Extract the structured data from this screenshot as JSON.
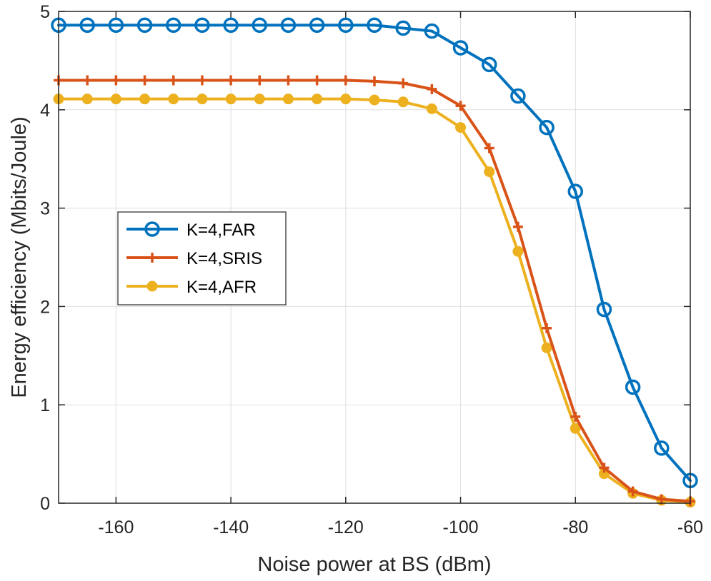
{
  "chart_data": {
    "type": "line",
    "title": "",
    "xlabel": "Noise power at BS (dBm)",
    "ylabel": "Energy efficiency (Mbits/Joule)",
    "xlim": [
      -170,
      -60
    ],
    "ylim": [
      0,
      5
    ],
    "xticks": [
      -160,
      -140,
      -120,
      -100,
      -80,
      -60
    ],
    "yticks": [
      0,
      1,
      2,
      3,
      4,
      5
    ],
    "grid": true,
    "legend_position": "center-left",
    "x": [
      -170,
      -165,
      -160,
      -155,
      -150,
      -145,
      -140,
      -135,
      -130,
      -125,
      -120,
      -115,
      -110,
      -105,
      -100,
      -95,
      -90,
      -85,
      -80,
      -75,
      -70,
      -65,
      -60
    ],
    "series": [
      {
        "name": "K=4,FAR",
        "color": "#0072BD",
        "marker": "circle-open",
        "values": [
          4.86,
          4.86,
          4.86,
          4.86,
          4.86,
          4.86,
          4.86,
          4.86,
          4.86,
          4.86,
          4.86,
          4.86,
          4.83,
          4.8,
          4.63,
          4.46,
          4.14,
          3.82,
          3.17,
          1.97,
          1.18,
          0.56,
          0.23
        ]
      },
      {
        "name": "K=4,SRIS",
        "color": "#D95319",
        "marker": "plus",
        "values": [
          4.3,
          4.3,
          4.3,
          4.3,
          4.3,
          4.3,
          4.3,
          4.3,
          4.3,
          4.3,
          4.3,
          4.29,
          4.27,
          4.21,
          4.04,
          3.61,
          2.81,
          1.78,
          0.88,
          0.36,
          0.12,
          0.04,
          0.02
        ]
      },
      {
        "name": "K=4,AFR",
        "color": "#EDB120",
        "marker": "circle-filled",
        "values": [
          4.11,
          4.11,
          4.11,
          4.11,
          4.11,
          4.11,
          4.11,
          4.11,
          4.11,
          4.11,
          4.11,
          4.1,
          4.08,
          4.01,
          3.82,
          3.37,
          2.56,
          1.58,
          0.76,
          0.3,
          0.1,
          0.03,
          0.01
        ]
      }
    ]
  }
}
